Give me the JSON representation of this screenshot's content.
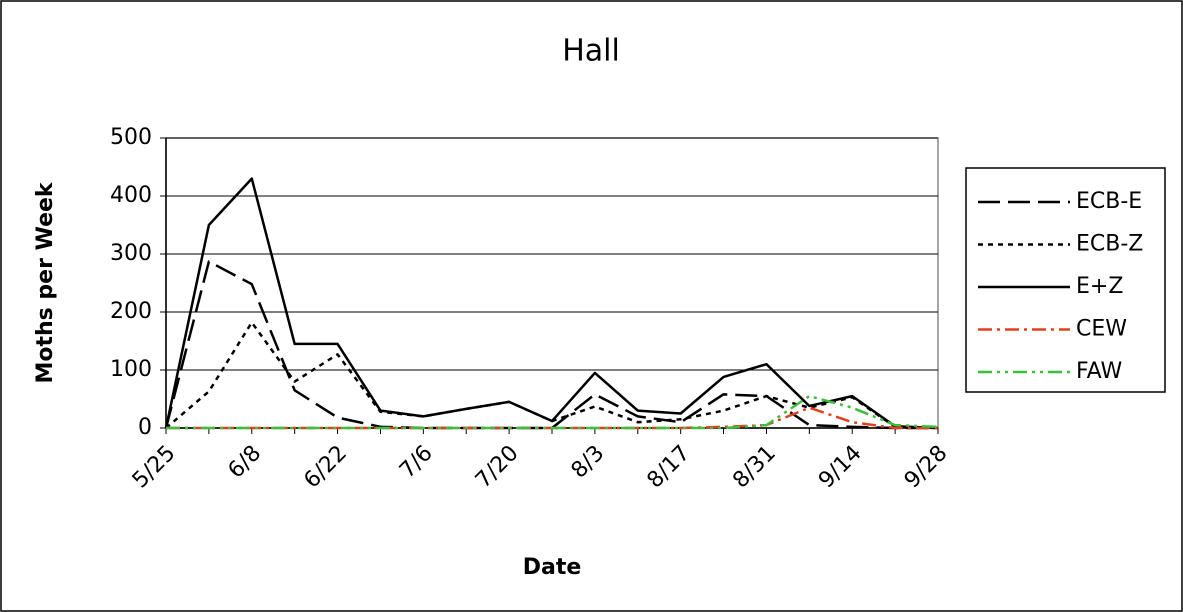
{
  "chart_data": {
    "type": "line",
    "title": "Hall",
    "xlabel": "Date",
    "ylabel": "Moths per Week",
    "categories": [
      "5/25",
      null,
      "6/8",
      null,
      "6/22",
      null,
      "7/6",
      null,
      "7/20",
      null,
      "8/3",
      null,
      "8/17",
      null,
      "8/31",
      null,
      "9/14",
      null,
      "9/28"
    ],
    "series": [
      {
        "name": "ECB-E",
        "color": "#000000",
        "dash": "22,8",
        "values": [
          0,
          287,
          248,
          65,
          18,
          2,
          0,
          0,
          0,
          0,
          58,
          20,
          10,
          58,
          55,
          5,
          2,
          0,
          0
        ]
      },
      {
        "name": "ECB-Z",
        "color": "#000000",
        "dash": "5,5",
        "values": [
          0,
          63,
          182,
          80,
          127,
          28,
          20,
          33,
          45,
          12,
          37,
          10,
          15,
          30,
          55,
          35,
          53,
          2,
          0
        ]
      },
      {
        "name": "E+Z",
        "color": "#000000",
        "dash": "none",
        "values": [
          0,
          350,
          430,
          145,
          145,
          30,
          20,
          33,
          45,
          12,
          95,
          30,
          25,
          88,
          110,
          38,
          55,
          3,
          0
        ]
      },
      {
        "name": "CEW",
        "color": "#e0401e",
        "dash": "14,5,3,5",
        "values": [
          0,
          0,
          0,
          0,
          0,
          0,
          0,
          0,
          0,
          0,
          0,
          0,
          0,
          2,
          5,
          35,
          10,
          0,
          0
        ]
      },
      {
        "name": "FAW",
        "color": "#3cbf3c",
        "dash": "14,5,3,5,3,5",
        "values": [
          0,
          0,
          0,
          0,
          0,
          0,
          0,
          0,
          0,
          0,
          0,
          0,
          0,
          0,
          5,
          55,
          35,
          5,
          2
        ]
      }
    ],
    "ylim": [
      0,
      500
    ],
    "yticks": [
      0,
      100,
      200,
      300,
      400,
      500
    ],
    "grid": true,
    "legend": "right"
  }
}
